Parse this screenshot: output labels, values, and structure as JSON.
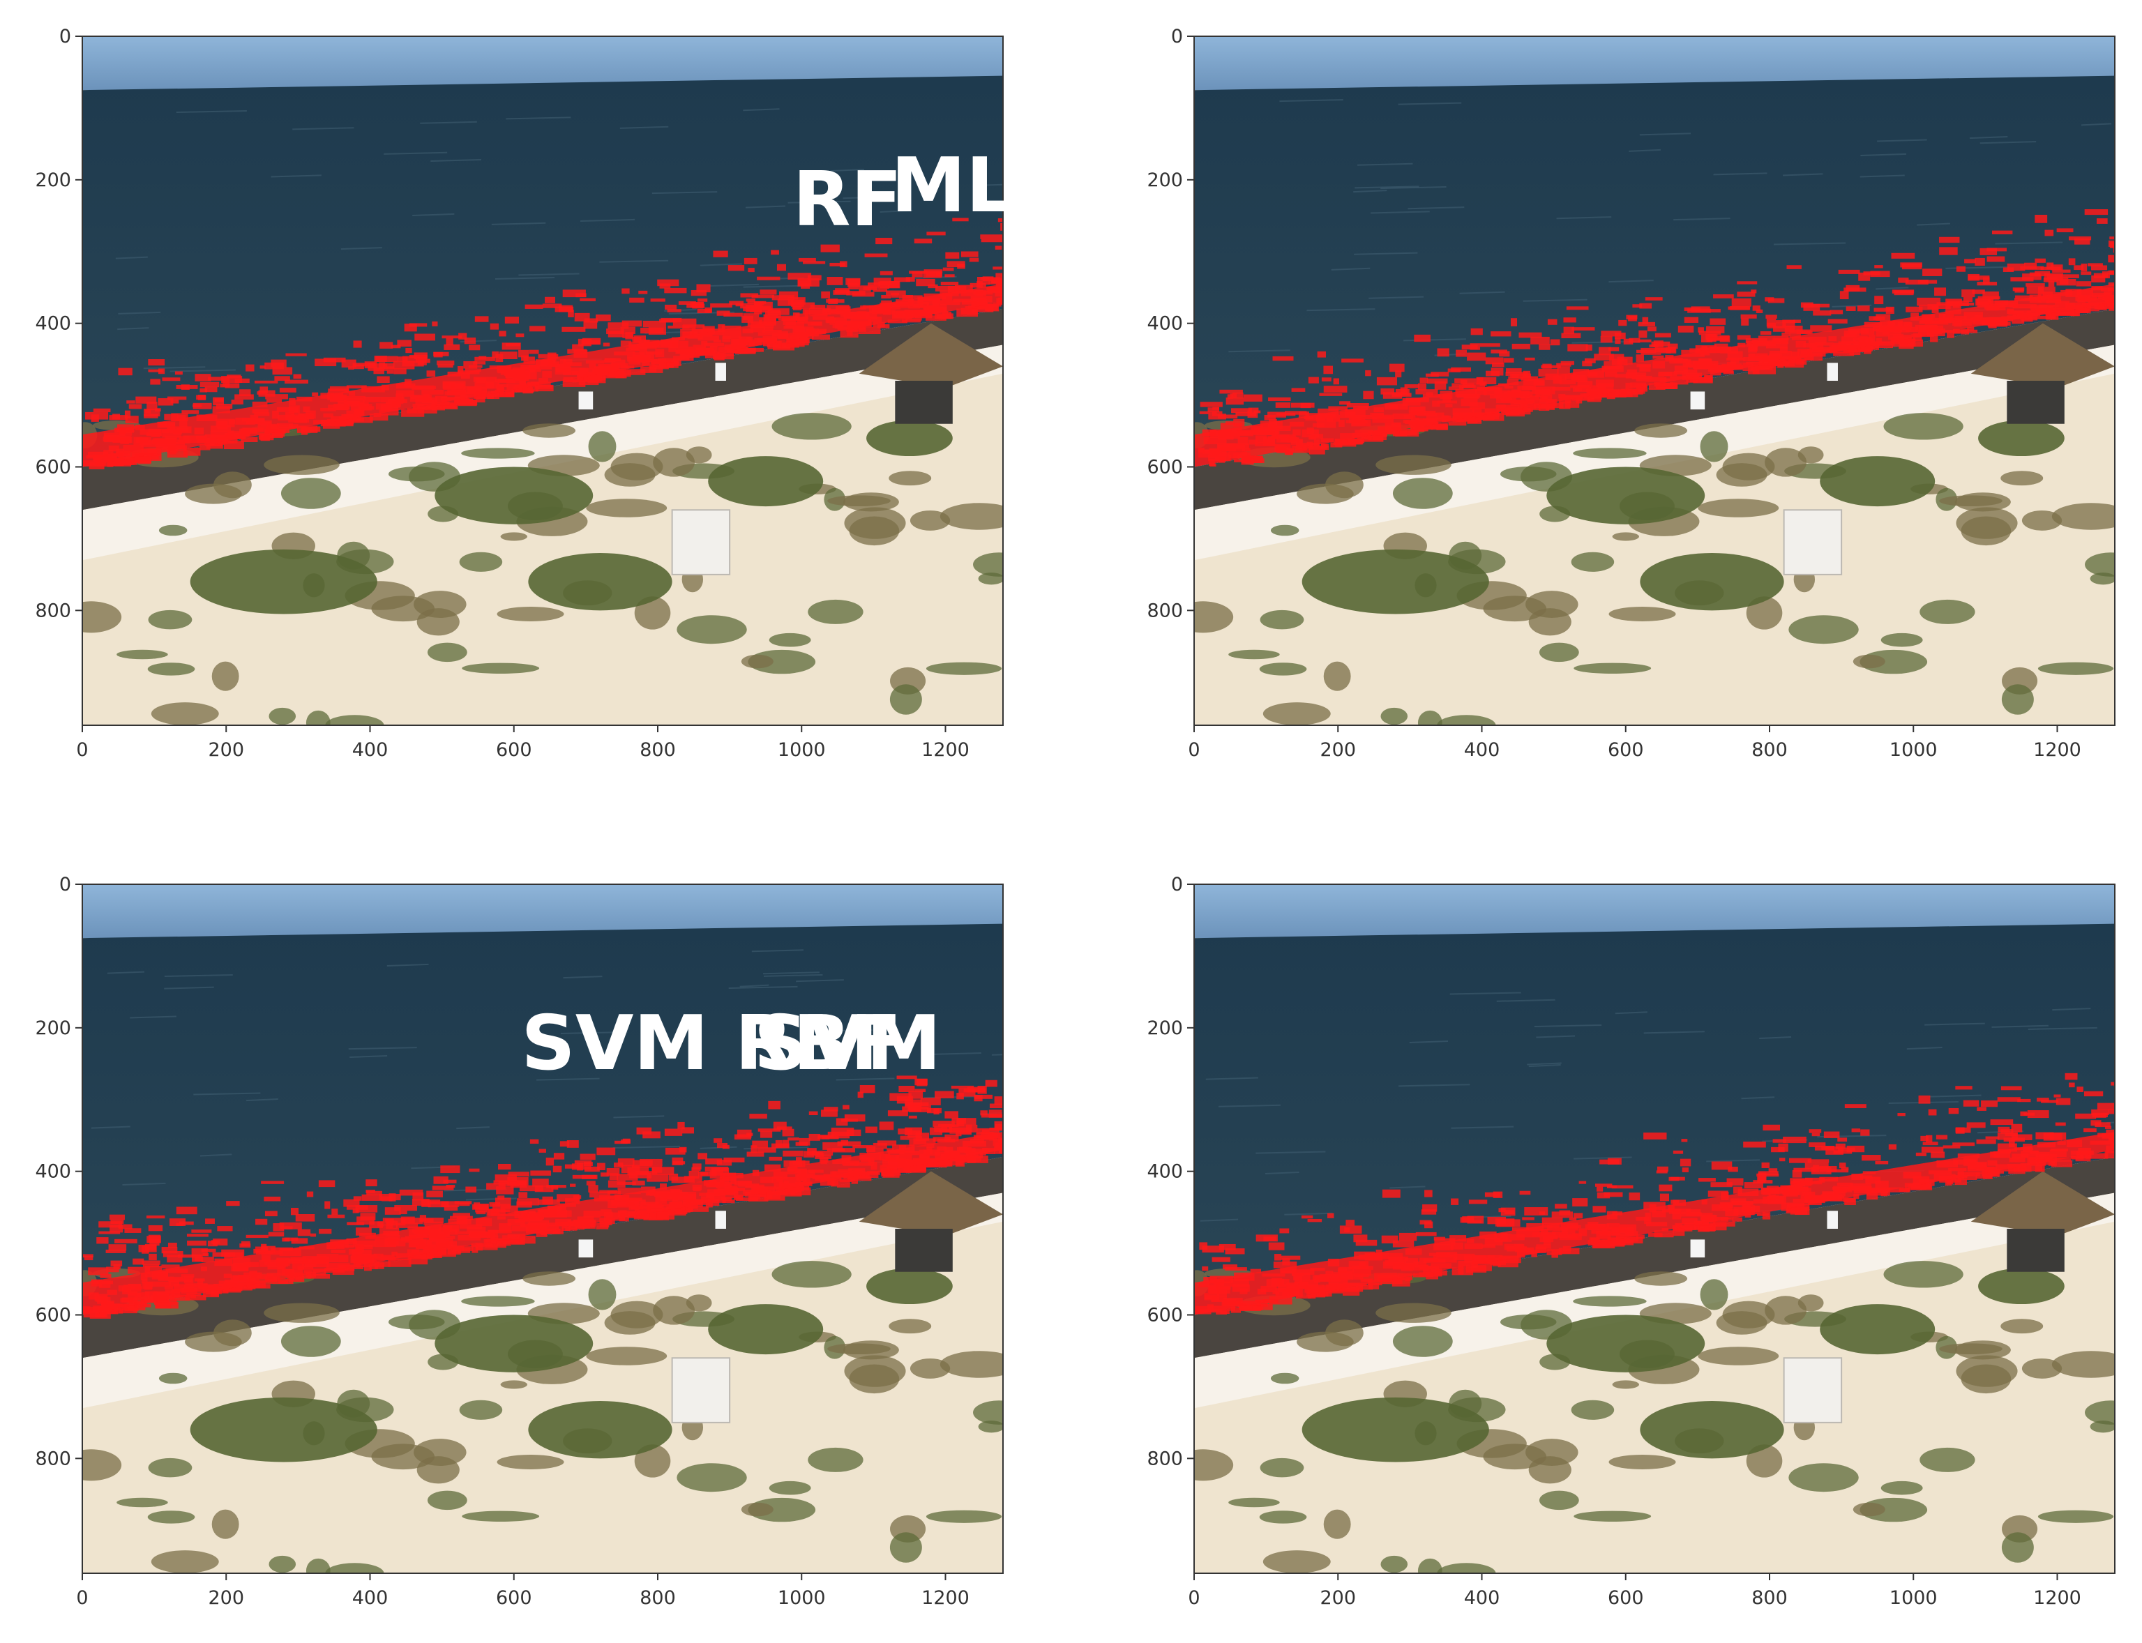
{
  "figure": {
    "image_extent": {
      "x": [
        0,
        1280
      ],
      "y": [
        0,
        960
      ]
    },
    "xticks": [
      0,
      200,
      400,
      600,
      800,
      1000,
      1200
    ],
    "yticks": [
      0,
      200,
      400,
      600,
      800
    ],
    "detection_color": "#ff1a1a",
    "panels": [
      {
        "title": "RF"
      },
      {
        "title": "MLP"
      },
      {
        "title": "SVM RBF"
      },
      {
        "title": "SVM"
      }
    ]
  }
}
